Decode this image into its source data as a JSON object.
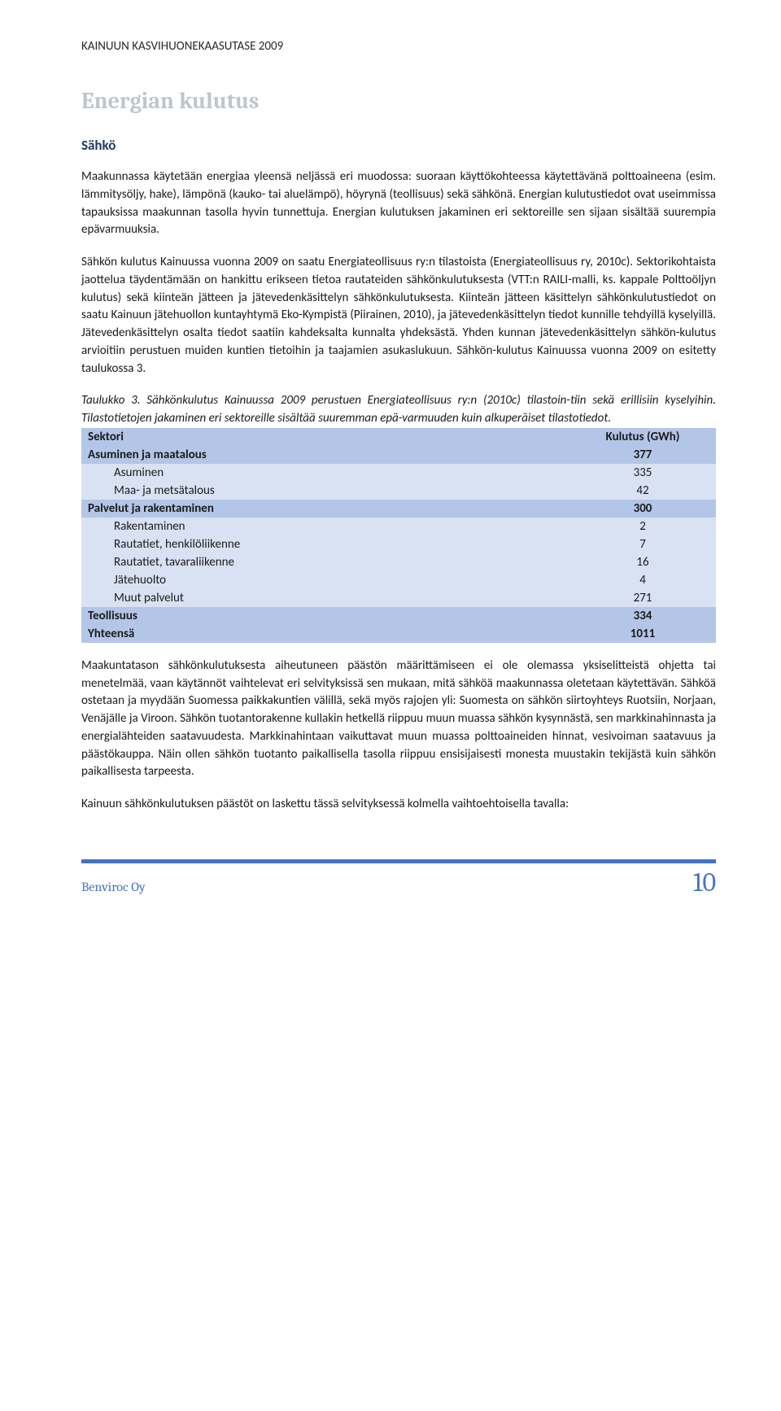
{
  "header": {
    "title": "KAINUUN KASVIHUONEKAASUTASE 2009"
  },
  "section": {
    "heading": "Energian kulutus",
    "subheading": "Sähkö"
  },
  "paragraphs": {
    "p1": "Maakunnassa käytetään energiaa yleensä neljässä eri muodossa: suoraan käyttökohteessa käytettävänä polttoaineena (esim. lämmitysöljy, hake), lämpönä (kauko- tai aluelämpö), höyrynä (teollisuus) sekä sähkönä. Energian kulutustiedot ovat useimmissa tapauksissa maakunnan tasolla hyvin tunnettuja. Energian kulutuksen jakaminen eri sektoreille sen sijaan sisältää suurempia epävarmuuksia.",
    "p2": "Sähkön kulutus Kainuussa vuonna 2009 on saatu Energiateollisuus ry:n tilastoista (Energiateollisuus ry, 2010c). Sektorikohtaista jaottelua täydentämään on hankittu erikseen tietoa rautateiden sähkönkulutuksesta (VTT:n RAILI-malli, ks. kappale Polttoöljyn kulutus) sekä kiinteän jätteen ja jätevedenkäsittelyn sähkönkulutuksesta. Kiinteän jätteen käsittelyn sähkönkulutustiedot on saatu Kainuun jätehuollon kuntayhtymä Eko-Kympistä (Piirainen, 2010), ja jätevedenkäsittelyn tiedot kunnille tehdyillä kyselyillä. Jätevedenkäsittelyn osalta tiedot saatiin kahdeksalta kunnalta yhdeksästä. Yhden kunnan jätevedenkäsittelyn sähkön-kulutus arvioitiin perustuen muiden kuntien tietoihin ja taajamien asukaslukuun. Sähkön-kulutus Kainuussa vuonna 2009 on esitetty taulukossa 3.",
    "p3_italic": "Taulukko 3. Sähkönkulutus Kainuussa 2009 perustuen Energiateollisuus ry:n (2010c) tilastoin-tiin sekä erillisiin kyselyihin. Tilastotietojen jakaminen eri sektoreille sisältää suuremman epä-varmuuden kuin alkuperäiset tilastotiedot.",
    "p4": "Maakuntatason sähkönkulutuksesta aiheutuneen päästön määrittämiseen ei ole olemassa yksiselitteistä ohjetta tai menetelmää, vaan käytännöt vaihtelevat eri selvityksissä sen mukaan, mitä sähköä maakunnassa oletetaan käytettävän. Sähköä ostetaan ja myydään Suomessa paikkakuntien välillä, sekä myös rajojen yli: Suomesta on sähkön siirtoyhteys Ruotsiin, Norjaan, Venäjälle ja Viroon. Sähkön tuotantorakenne kullakin hetkellä riippuu muun muassa sähkön kysynnästä, sen markkinahinnasta ja energialähteiden saatavuudesta. Markkinahintaan vaikuttavat muun muassa polttoaineiden hinnat, vesivoiman saatavuus ja päästökauppa. Näin ollen sähkön tuotanto paikallisella tasolla riippuu ensisijaisesti monesta muustakin tekijästä kuin sähkön paikallisesta tarpeesta.",
    "p5": "Kainuun sähkönkulutuksen päästöt on laskettu tässä selvityksessä kolmella vaihtoehtoisella tavalla:"
  },
  "table": {
    "header_colors": {
      "category_bg": "#b4c6e7",
      "sub_bg": "#d9e2f3"
    },
    "columns": [
      "Sektori",
      "Kulutus (GWh)"
    ],
    "rows": [
      {
        "type": "cat",
        "label": "Asuminen ja maatalous",
        "value": "377"
      },
      {
        "type": "sub",
        "label": "Asuminen",
        "value": "335"
      },
      {
        "type": "sub",
        "label": "Maa- ja metsätalous",
        "value": "42"
      },
      {
        "type": "cat",
        "label": "Palvelut ja rakentaminen",
        "value": "300"
      },
      {
        "type": "sub",
        "label": "Rakentaminen",
        "value": "2"
      },
      {
        "type": "sub",
        "label": "Rautatiet, henkilöliikenne",
        "value": "7"
      },
      {
        "type": "sub",
        "label": "Rautatiet, tavaraliikenne",
        "value": "16"
      },
      {
        "type": "sub",
        "label": "Jätehuolto",
        "value": "4"
      },
      {
        "type": "sub",
        "label": "Muut palvelut",
        "value": "271"
      },
      {
        "type": "cat",
        "label": "Teollisuus",
        "value": "334"
      },
      {
        "type": "total",
        "label": "Yhteensä",
        "value": "1011"
      }
    ]
  },
  "footer": {
    "left": "Benviroc Oy",
    "page": "10",
    "line_color": "#4472c4",
    "text_color": "#4472c4"
  }
}
